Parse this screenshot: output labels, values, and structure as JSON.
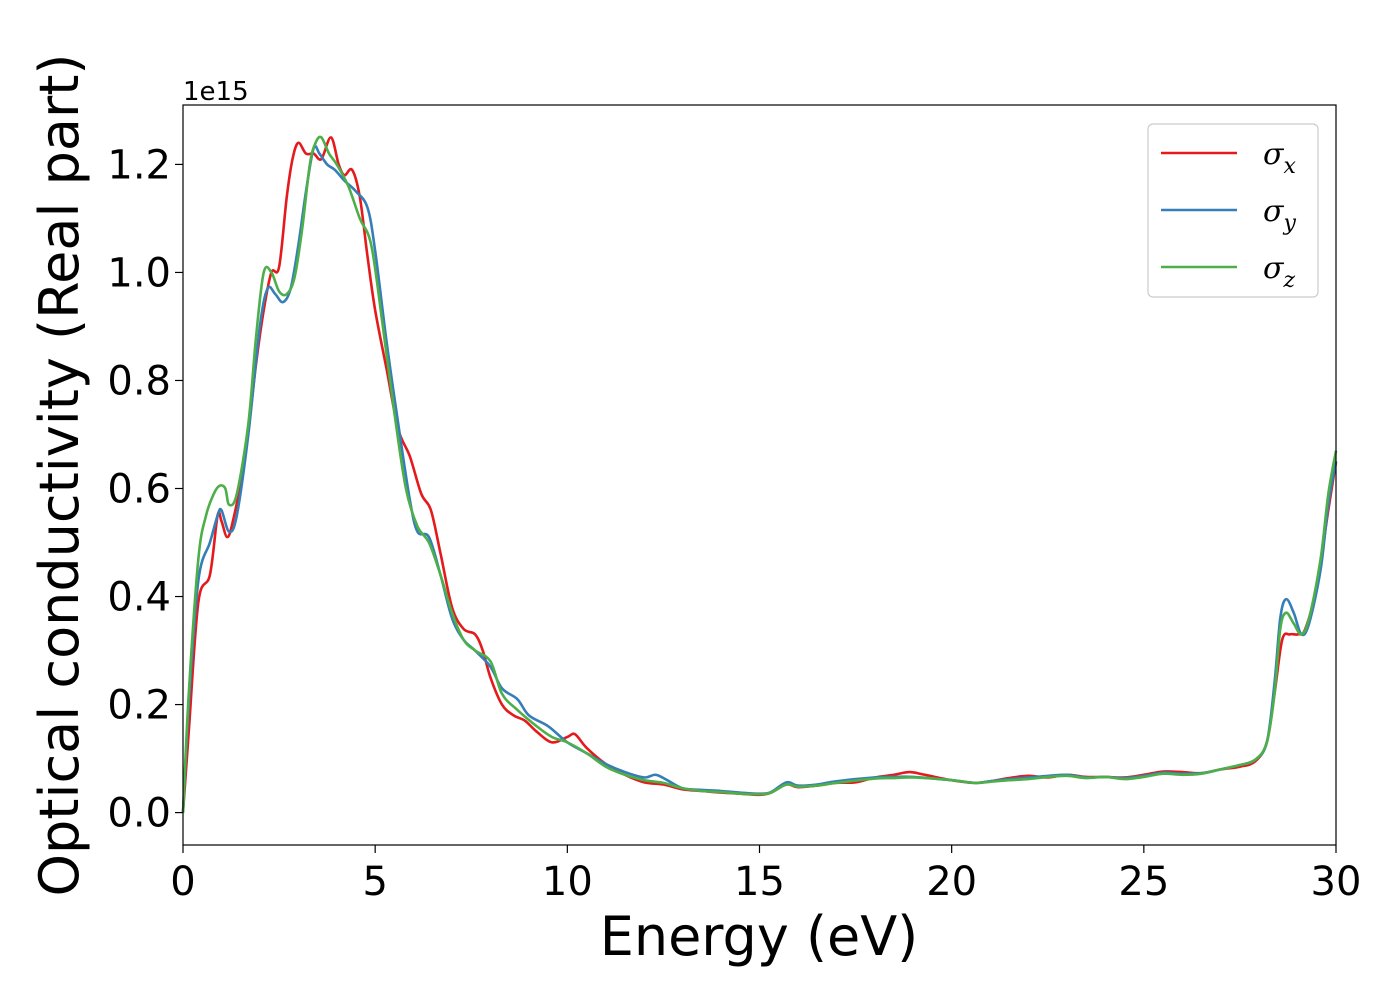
{
  "chart_data": {
    "type": "line",
    "title": "",
    "xlabel": "Energy (eV)",
    "ylabel": "Optical conductivity (Real part)",
    "y_offset_label": "1e15",
    "xlim": [
      0,
      30
    ],
    "ylim": [
      -0.06,
      1.31
    ],
    "x_ticks": [
      0,
      5,
      10,
      15,
      20,
      25,
      30
    ],
    "x_tick_labels": [
      "0",
      "5",
      "10",
      "15",
      "20",
      "25",
      "30"
    ],
    "y_ticks": [
      0.0,
      0.2,
      0.4,
      0.6,
      0.8,
      1.0,
      1.2
    ],
    "y_tick_labels": [
      "0.0",
      "0.2",
      "0.4",
      "0.6",
      "0.8",
      "1.0",
      "1.2"
    ],
    "grid": false,
    "legend_position": "top-right",
    "series": [
      {
        "name": "σx",
        "legend_base": "σ",
        "legend_sub": "x",
        "color": "#e41a1c",
        "x": [
          0,
          0.15,
          0.4,
          0.7,
          0.9,
          1.0,
          1.15,
          1.3,
          1.6,
          1.9,
          2.1,
          2.3,
          2.5,
          2.7,
          2.85,
          3.0,
          3.2,
          3.4,
          3.6,
          3.85,
          4.05,
          4.2,
          4.4,
          4.6,
          4.8,
          5.0,
          5.3,
          5.6,
          5.9,
          6.2,
          6.45,
          6.7,
          7.0,
          7.3,
          7.6,
          7.8,
          8.0,
          8.3,
          8.6,
          8.9,
          9.2,
          9.6,
          10.0,
          10.2,
          10.5,
          11.0,
          11.5,
          12.0,
          12.5,
          13.0,
          13.5,
          14.0,
          14.5,
          15.0,
          15.3,
          15.7,
          16.0,
          16.5,
          17.0,
          17.5,
          18.0,
          18.5,
          18.9,
          19.3,
          20.0,
          20.6,
          21.0,
          21.5,
          22.0,
          22.5,
          23.0,
          23.5,
          24.0,
          24.5,
          25.0,
          25.5,
          26.0,
          26.5,
          27.0,
          27.5,
          27.9,
          28.2,
          28.4,
          28.6,
          28.8,
          29.0,
          29.2,
          29.5,
          29.8,
          30.0
        ],
        "y": [
          0.0,
          0.15,
          0.39,
          0.44,
          0.55,
          0.54,
          0.51,
          0.54,
          0.65,
          0.83,
          0.93,
          1.0,
          1.01,
          1.14,
          1.21,
          1.24,
          1.22,
          1.22,
          1.21,
          1.25,
          1.2,
          1.18,
          1.19,
          1.14,
          1.03,
          0.93,
          0.82,
          0.71,
          0.66,
          0.59,
          0.56,
          0.48,
          0.38,
          0.34,
          0.33,
          0.3,
          0.25,
          0.2,
          0.18,
          0.17,
          0.15,
          0.13,
          0.14,
          0.145,
          0.12,
          0.09,
          0.07,
          0.056,
          0.052,
          0.043,
          0.04,
          0.037,
          0.035,
          0.033,
          0.037,
          0.052,
          0.047,
          0.05,
          0.055,
          0.056,
          0.065,
          0.07,
          0.075,
          0.07,
          0.06,
          0.055,
          0.058,
          0.064,
          0.068,
          0.065,
          0.07,
          0.066,
          0.066,
          0.065,
          0.07,
          0.076,
          0.075,
          0.073,
          0.08,
          0.085,
          0.095,
          0.13,
          0.22,
          0.32,
          0.33,
          0.33,
          0.34,
          0.42,
          0.56,
          0.65
        ]
      },
      {
        "name": "σy",
        "legend_base": "σ",
        "legend_sub": "y",
        "color": "#377eb8",
        "x": [
          0,
          0.15,
          0.4,
          0.7,
          0.9,
          1.0,
          1.2,
          1.4,
          1.7,
          2.0,
          2.2,
          2.4,
          2.6,
          2.8,
          3.0,
          3.2,
          3.4,
          3.55,
          3.75,
          3.95,
          4.2,
          4.5,
          4.8,
          5.0,
          5.3,
          5.6,
          5.9,
          6.1,
          6.4,
          6.7,
          7.0,
          7.3,
          7.6,
          8.0,
          8.3,
          8.7,
          9.0,
          9.5,
          10.0,
          10.5,
          11.0,
          11.5,
          12.0,
          12.3,
          12.6,
          13.0,
          13.5,
          14.0,
          14.5,
          15.0,
          15.3,
          15.7,
          16.0,
          16.5,
          17.0,
          18.0,
          18.5,
          19.0,
          20.0,
          20.6,
          21.0,
          21.5,
          22.0,
          22.5,
          23.0,
          23.5,
          24.0,
          24.5,
          25.0,
          25.5,
          26.0,
          26.5,
          27.0,
          27.5,
          27.9,
          28.2,
          28.4,
          28.55,
          28.7,
          28.9,
          29.1,
          29.3,
          29.6,
          29.8,
          30.0
        ],
        "y": [
          0.0,
          0.2,
          0.43,
          0.5,
          0.55,
          0.56,
          0.52,
          0.55,
          0.7,
          0.9,
          0.97,
          0.96,
          0.945,
          0.97,
          1.05,
          1.15,
          1.23,
          1.22,
          1.2,
          1.19,
          1.17,
          1.15,
          1.12,
          1.04,
          0.87,
          0.72,
          0.58,
          0.52,
          0.51,
          0.44,
          0.36,
          0.32,
          0.3,
          0.27,
          0.23,
          0.21,
          0.18,
          0.16,
          0.13,
          0.11,
          0.09,
          0.075,
          0.065,
          0.07,
          0.06,
          0.045,
          0.042,
          0.04,
          0.037,
          0.035,
          0.038,
          0.056,
          0.05,
          0.052,
          0.058,
          0.065,
          0.066,
          0.066,
          0.06,
          0.055,
          0.058,
          0.062,
          0.065,
          0.068,
          0.07,
          0.065,
          0.066,
          0.064,
          0.068,
          0.074,
          0.072,
          0.073,
          0.08,
          0.088,
          0.098,
          0.13,
          0.24,
          0.36,
          0.395,
          0.37,
          0.33,
          0.35,
          0.45,
          0.57,
          0.65
        ]
      },
      {
        "name": "σz",
        "legend_base": "σ",
        "legend_sub": "z",
        "color": "#4daf4a",
        "x": [
          0,
          0.15,
          0.4,
          0.6,
          0.8,
          0.95,
          1.1,
          1.2,
          1.4,
          1.7,
          1.9,
          2.1,
          2.3,
          2.5,
          2.7,
          2.9,
          3.1,
          3.3,
          3.45,
          3.6,
          3.8,
          4.0,
          4.3,
          4.6,
          4.9,
          5.2,
          5.5,
          5.8,
          6.1,
          6.4,
          6.7,
          7.0,
          7.3,
          7.6,
          8.0,
          8.3,
          8.7,
          9.2,
          9.6,
          10.0,
          10.5,
          11.0,
          11.5,
          12.0,
          12.5,
          13.0,
          13.5,
          14.0,
          14.5,
          15.0,
          15.3,
          15.7,
          16.0,
          16.5,
          17.0,
          18.0,
          18.5,
          19.0,
          20.0,
          20.6,
          21.0,
          21.5,
          22.0,
          22.5,
          23.0,
          23.5,
          24.0,
          24.5,
          25.0,
          25.5,
          26.0,
          26.5,
          27.0,
          27.5,
          27.9,
          28.2,
          28.4,
          28.55,
          28.7,
          28.9,
          29.1,
          29.3,
          29.6,
          29.8,
          30.0
        ],
        "y": [
          0.0,
          0.22,
          0.47,
          0.55,
          0.59,
          0.605,
          0.6,
          0.57,
          0.59,
          0.72,
          0.88,
          1.0,
          1.0,
          0.965,
          0.96,
          0.99,
          1.08,
          1.2,
          1.24,
          1.25,
          1.22,
          1.2,
          1.16,
          1.1,
          1.05,
          0.9,
          0.74,
          0.6,
          0.53,
          0.5,
          0.44,
          0.37,
          0.32,
          0.3,
          0.28,
          0.22,
          0.19,
          0.16,
          0.14,
          0.13,
          0.11,
          0.085,
          0.07,
          0.06,
          0.055,
          0.045,
          0.04,
          0.038,
          0.035,
          0.034,
          0.037,
          0.052,
          0.048,
          0.05,
          0.055,
          0.063,
          0.064,
          0.065,
          0.06,
          0.055,
          0.057,
          0.06,
          0.062,
          0.066,
          0.068,
          0.064,
          0.066,
          0.062,
          0.066,
          0.072,
          0.07,
          0.072,
          0.08,
          0.088,
          0.098,
          0.13,
          0.22,
          0.34,
          0.37,
          0.35,
          0.33,
          0.36,
          0.47,
          0.59,
          0.67
        ]
      }
    ]
  }
}
